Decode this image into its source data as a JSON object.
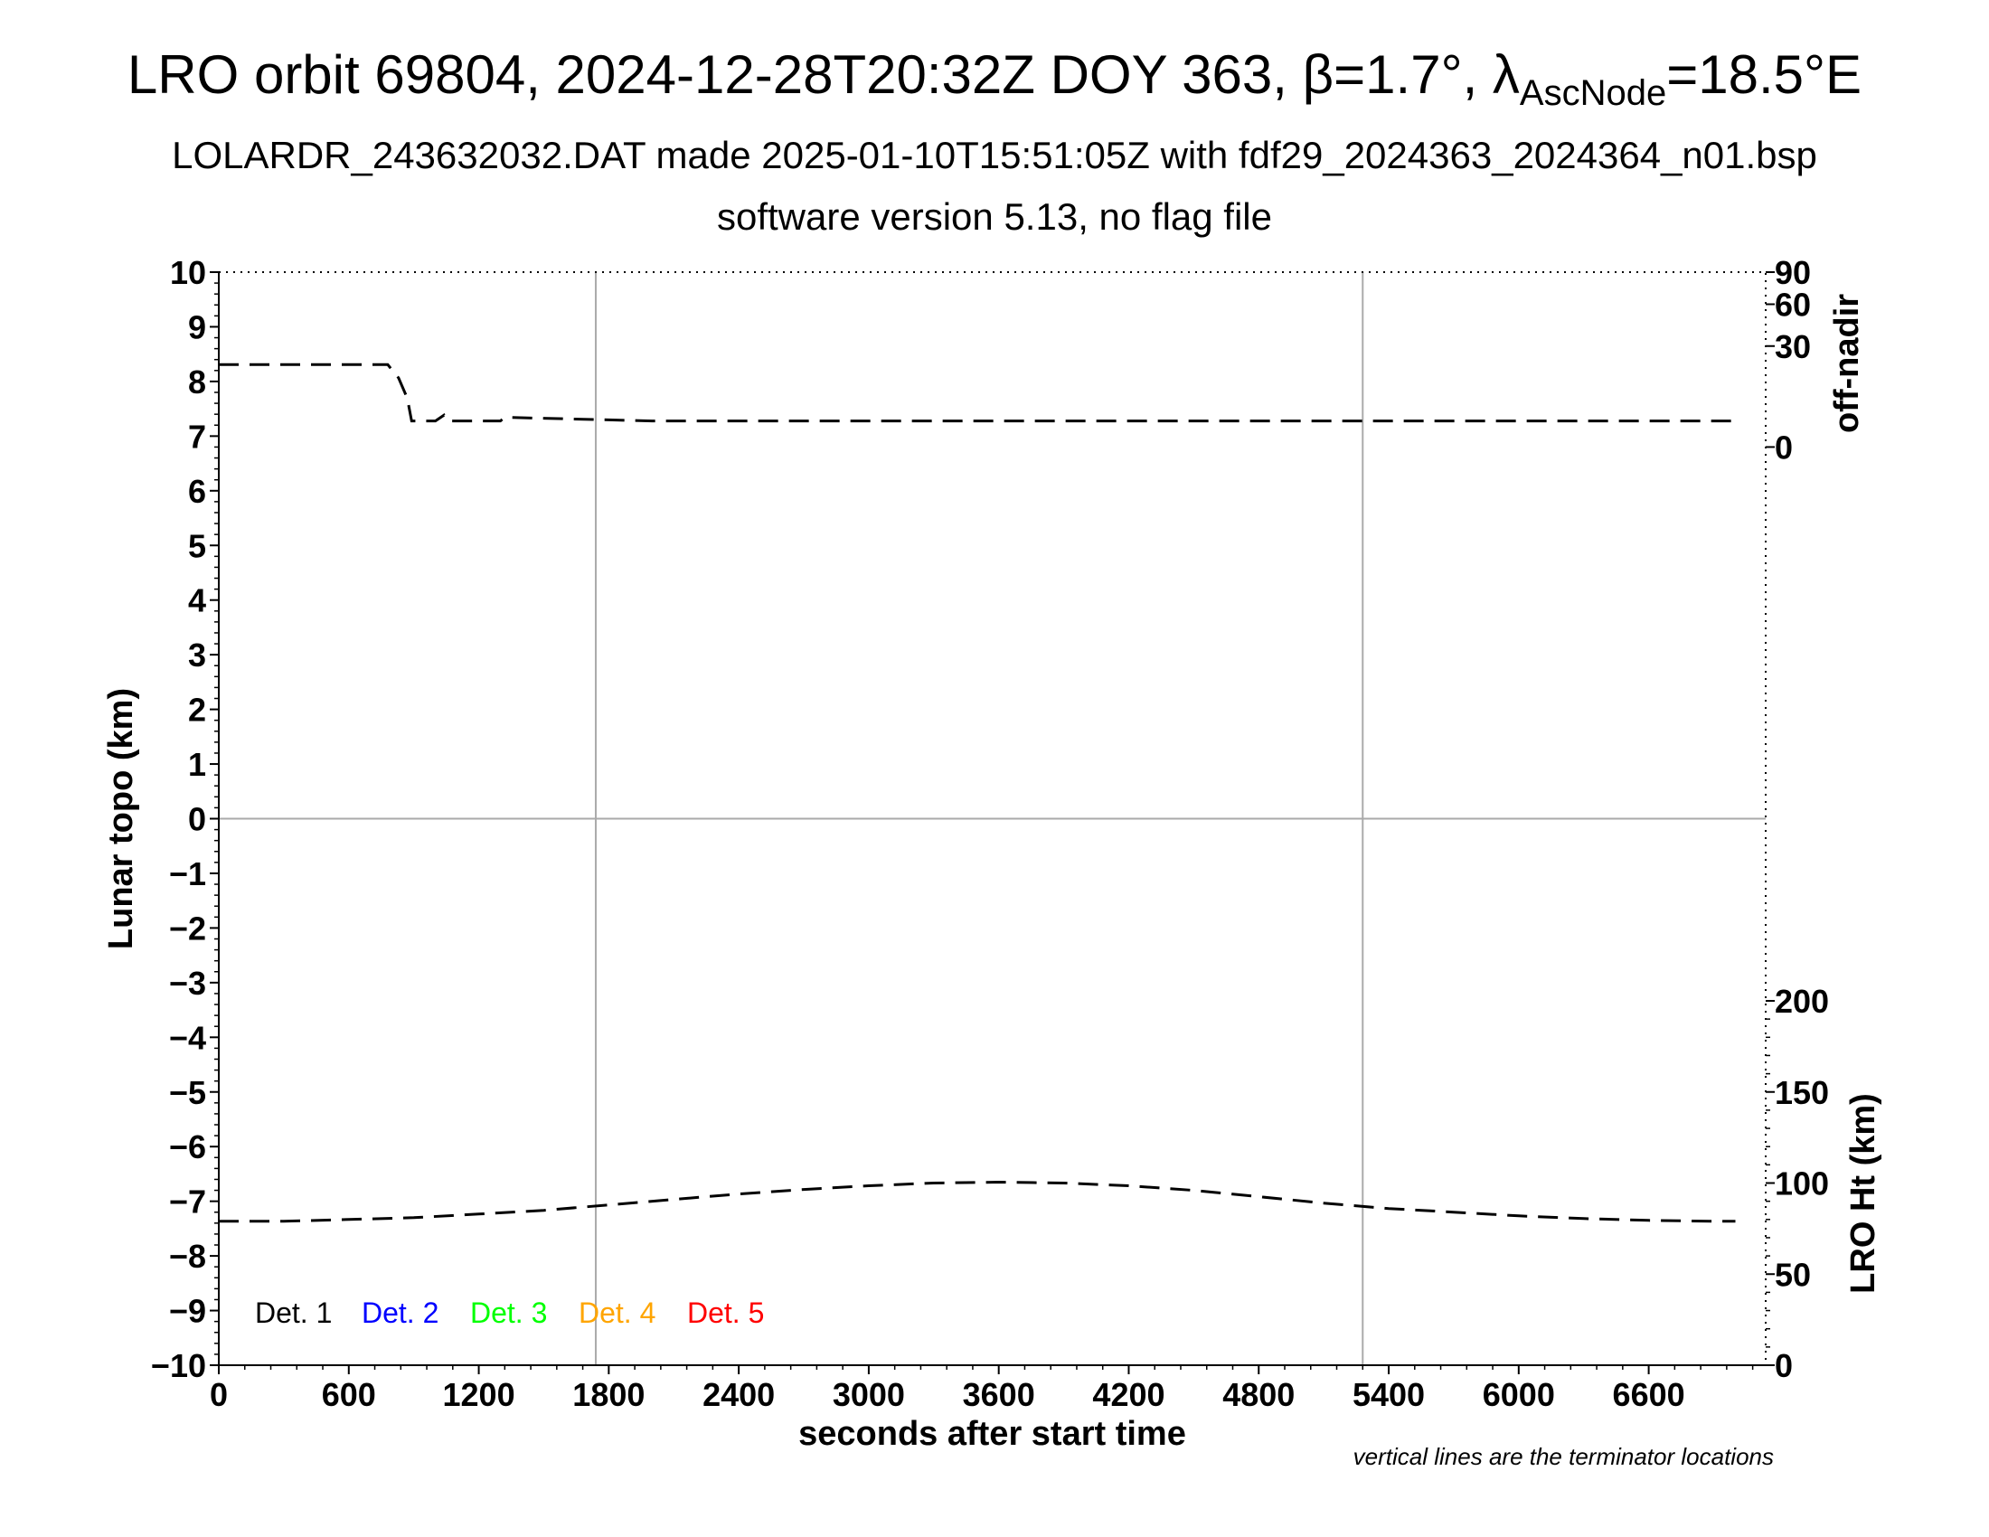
{
  "header": {
    "title_main": "LRO orbit 69804, 2024-12-28T20:32Z DOY 363, β=1.7°, λ",
    "title_sub": "AscNode",
    "title_tail": "=18.5°E",
    "subtitle": "LOLARDR_243632032.DAT made 2025-01-10T15:51:05Z with fdf29_2024363_2024364_n01.bsp",
    "subtitle2": "software version 5.13, no flag file"
  },
  "note": "vertical lines are the terminator locations",
  "colors": {
    "det1": "#000000",
    "det2": "#0000ff",
    "det3": "#00ff00",
    "det4": "#ffa500",
    "det5": "#ff0000",
    "grid": "#aaaaaa"
  },
  "chart_data": {
    "type": "line",
    "xlabel": "seconds after start time",
    "ylabel_left": "Lunar topo (km)",
    "ylabel_right_top": "off-nadir",
    "ylabel_right_bottom": "LRO Ht (km)",
    "xlim": [
      0,
      7140
    ],
    "ylim_left": [
      -10,
      10
    ],
    "x_ticks": [
      0,
      600,
      1200,
      1800,
      2400,
      3000,
      3600,
      4200,
      4800,
      5400,
      6000,
      6600
    ],
    "y_ticks_left": [
      "10",
      "9",
      "8",
      "7",
      "6",
      "5",
      "4",
      "3",
      "2",
      "1",
      "0",
      "−1",
      "−2",
      "−3",
      "−4",
      "−5",
      "−6",
      "−7",
      "−8",
      "−9",
      "−10"
    ],
    "right_top_ticks": [
      "90",
      "60",
      "30",
      "0"
    ],
    "right_bottom_ticks": [
      "200",
      "150",
      "100",
      "50",
      "0"
    ],
    "terminator_lines_x": [
      1740,
      5280
    ],
    "legend": [
      "Det. 1",
      "Det. 2",
      "Det. 3",
      "Det. 4",
      "Det. 5"
    ],
    "series": [
      {
        "name": "off-nadir",
        "axis": "off-nadir (deg)",
        "x": [
          0,
          600,
          780,
          830,
          870,
          890,
          910,
          1000,
          1040,
          1060,
          1300,
          1320,
          2000,
          3000,
          4000,
          5000,
          6000,
          7000
        ],
        "y": [
          20,
          20,
          20,
          14,
          7,
          2,
          2,
          2,
          3,
          2,
          2,
          2.6,
          2,
          2,
          2,
          2,
          2,
          2
        ]
      },
      {
        "name": "LRO Ht (km)",
        "axis": "LRO Ht (km)",
        "x": [
          0,
          300,
          600,
          900,
          1200,
          1500,
          1800,
          2100,
          2400,
          2700,
          3000,
          3300,
          3600,
          3900,
          4200,
          4500,
          4800,
          5100,
          5400,
          5700,
          6000,
          6300,
          6600,
          6900,
          7000
        ],
        "y": [
          79,
          79,
          80,
          81,
          83,
          85,
          88,
          91,
          94,
          96.5,
          98.5,
          100,
          100.5,
          100,
          98.5,
          96,
          92.5,
          89,
          86,
          84,
          82,
          80.5,
          79.5,
          79,
          79
        ]
      }
    ]
  }
}
